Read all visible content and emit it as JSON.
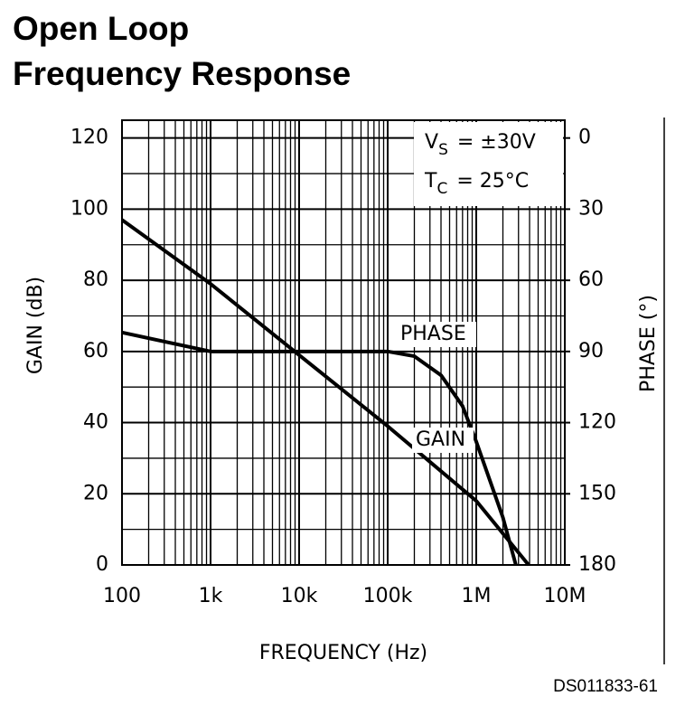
{
  "chart_data": {
    "type": "line",
    "title": [
      "Open Loop",
      "Frequency Response"
    ],
    "xlabel": "FREQUENCY (Hz)",
    "ylabel": "GAIN (dB)",
    "y2label": "PHASE (°)",
    "xscale": "log",
    "xlim": [
      100,
      10000000
    ],
    "xticks": [
      {
        "value": 100,
        "label": "100"
      },
      {
        "value": 1000,
        "label": "1k"
      },
      {
        "value": 10000,
        "label": "10k"
      },
      {
        "value": 100000,
        "label": "100k"
      },
      {
        "value": 1000000,
        "label": "1M"
      },
      {
        "value": 10000000,
        "label": "10M"
      }
    ],
    "ylim": [
      0,
      125
    ],
    "yticks": [
      0,
      20,
      40,
      60,
      80,
      100,
      120
    ],
    "y2lim": [
      180,
      -7.5
    ],
    "y2ticks": [
      0,
      30,
      60,
      90,
      120,
      150,
      180
    ],
    "grid": true,
    "series": [
      {
        "name": "GAIN",
        "color": "#000000",
        "x": [
          100,
          1000,
          10000,
          100000,
          1000000,
          3900000
        ],
        "values": [
          97,
          79,
          59,
          39,
          18,
          0
        ]
      },
      {
        "name": "PHASE",
        "color": "#000000",
        "axis": "y2",
        "x": [
          100,
          1000,
          100000,
          200000,
          400000,
          700000,
          1000000,
          2000000,
          2800000
        ],
        "values": [
          82,
          90,
          90,
          92,
          100,
          113,
          128,
          160,
          180
        ]
      }
    ],
    "annotations": [
      {
        "main": "V",
        "sub": "S",
        "rest": "= ±30V"
      },
      {
        "main": "T",
        "sub": "C",
        "rest": "= 25°C"
      }
    ],
    "footnote": "DS011833-61"
  }
}
